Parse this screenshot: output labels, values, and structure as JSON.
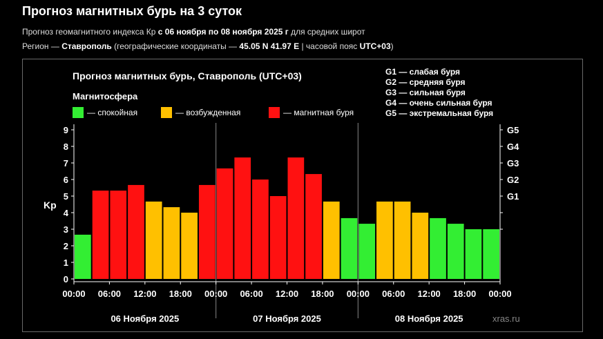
{
  "header": {
    "title": "Прогноз магнитных бурь на 3 суток",
    "line1_prefix": "Прогноз геомагнитного индекса Кр ",
    "line1_range": "с 06 ноября по 08 ноября 2025 г",
    "line1_suffix": " для средних широт",
    "line2_prefix": "Регион — ",
    "line2_city": "Ставрополь",
    "line2_mid": " (географические координаты — ",
    "line2_coords": "45.05 N 41.97 E",
    "line2_tz_prefix": " | часовой пояс ",
    "line2_tz": "UTC+03",
    "line2_suffix": ")"
  },
  "colors": {
    "calm": "#33ee33",
    "excited": "#ffc000",
    "storm": "#ff1111",
    "background": "#000000",
    "text": "#ffffff"
  },
  "chart_data": {
    "type": "bar",
    "title": "Прогноз магнитных бурь, Ставрополь (UTC+03)",
    "legend_title": "Магнитосфера",
    "legend": [
      {
        "key": "calm",
        "label": "— спокойная"
      },
      {
        "key": "excited",
        "label": "— возбужденная"
      },
      {
        "key": "storm",
        "label": "— магнитная буря"
      }
    ],
    "storm_levels": [
      "G1 — слабая буря",
      "G2 — средняя буря",
      "G3 — сильная буря",
      "G4 — очень сильная буря",
      "G5 — экстремальная буря"
    ],
    "ylabel": "Kp",
    "ylim": [
      0,
      9
    ],
    "yticks": [
      0,
      1,
      2,
      3,
      4,
      5,
      6,
      7,
      8,
      9
    ],
    "right_ticks": [
      {
        "value": 5,
        "label": "G1"
      },
      {
        "value": 6,
        "label": "G2"
      },
      {
        "value": 7,
        "label": "G3"
      },
      {
        "value": 8,
        "label": "G4"
      },
      {
        "value": 9,
        "label": "G5"
      }
    ],
    "x_tick_labels": [
      "00:00",
      "06:00",
      "12:00",
      "18:00",
      "00:00",
      "06:00",
      "12:00",
      "18:00",
      "00:00",
      "06:00",
      "12:00",
      "18:00",
      "00:00"
    ],
    "days": [
      "06 Ноября 2025",
      "07 Ноября 2025",
      "08 Ноября 2025"
    ],
    "values": [
      2.67,
      5.33,
      5.33,
      5.67,
      4.67,
      4.33,
      4.0,
      5.67,
      6.67,
      7.33,
      6.0,
      5.0,
      7.33,
      6.33,
      4.67,
      3.67,
      3.33,
      4.67,
      4.67,
      4.0,
      3.67,
      3.33,
      3.0,
      3.0
    ],
    "levels": [
      "calm",
      "storm",
      "storm",
      "storm",
      "excited",
      "excited",
      "excited",
      "storm",
      "storm",
      "storm",
      "storm",
      "storm",
      "storm",
      "storm",
      "excited",
      "calm",
      "calm",
      "excited",
      "excited",
      "excited",
      "calm",
      "calm",
      "calm",
      "calm"
    ]
  },
  "watermark": "xras.ru"
}
